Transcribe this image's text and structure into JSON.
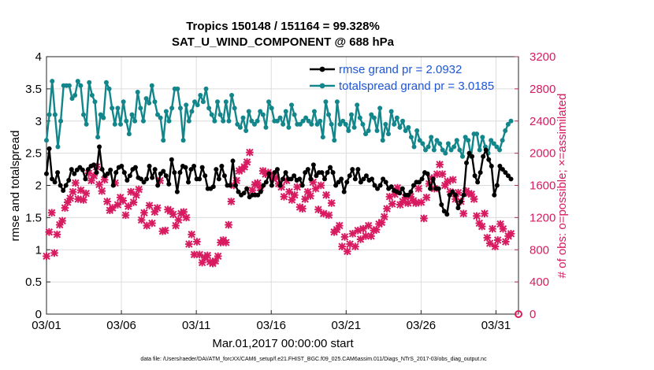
{
  "chart_data": {
    "type": "line",
    "title": "Tropics 150148 / 151164 = 99.328%",
    "subtitle": "SAT_U_WIND_COMPONENT @ 688 hPa",
    "xlabel": "Mar.01,2017 00:00:00 start",
    "ylabel": "rmse and totalspread",
    "y2label": "# of obs: o=possible; ×=assimilated",
    "footer": "data file: /Users/raeder/DAI/ATM_forcXX/CAM6_setup/f.e21.FHIST_BGC.f09_025.CAM6assim.011/Diags_NTrS_2017-03/obs_diag_output.nc",
    "xlim": [
      0,
      31.5
    ],
    "ylim": [
      0,
      4
    ],
    "y2lim": [
      0,
      3200
    ],
    "x_ticks": [
      0,
      5,
      10,
      15,
      20,
      25,
      30
    ],
    "x_tick_labels": [
      "03/01",
      "03/06",
      "03/11",
      "03/16",
      "03/21",
      "03/26",
      "03/31"
    ],
    "y_tick_labels": [
      "0",
      "0.5",
      "1",
      "1.5",
      "2",
      "2.5",
      "3",
      "3.5",
      "4"
    ],
    "y2_tick_labels": [
      "0",
      "400",
      "800",
      "1200",
      "1600",
      "2000",
      "2400",
      "2800",
      "3200"
    ],
    "grid": true,
    "legend_position": "top-right",
    "colors": {
      "rmse": "#000000",
      "totalspread": "#12868a",
      "obs": "#d81b60"
    },
    "series": [
      {
        "name": "rmse grand pr = 2.0932",
        "values": [
          2.18,
          2.57,
          2.1,
          2.05,
          2.2,
          2.0,
          1.92,
          2.0,
          2.08,
          2.25,
          2.18,
          2.24,
          2.28,
          2.24,
          2.1,
          2.25,
          2.3,
          2.32,
          2.2,
          2.6,
          2.25,
          2.15,
          2.18,
          2.24,
          2.0,
          2.2,
          2.28,
          2.3,
          2.2,
          2.08,
          2.15,
          2.25,
          2.28,
          2.12,
          2.1,
          2.05,
          2.1,
          2.3,
          2.12,
          2.25,
          2.0,
          2.18,
          2.22,
          2.15,
          2.02,
          2.4,
          2.2,
          1.9,
          2.2,
          2.3,
          2.28,
          2.05,
          2.25,
          2.3,
          2.1,
          2.1,
          2.28,
          2.15,
          1.95,
          1.95,
          1.98,
          2.25,
          2.1,
          2.3,
          2.15,
          2.0,
          2.0,
          2.38,
          2.0,
          1.9,
          1.85,
          1.88,
          1.95,
          1.82,
          1.85,
          1.85,
          1.85,
          1.9,
          2.0,
          2.05,
          2.18,
          2.0,
          2.2,
          2.25,
          2.0,
          2.1,
          2.2,
          2.1,
          2.1,
          2.15,
          2.08,
          2.1,
          2.0,
          2.2,
          2.25,
          2.1,
          2.32,
          2.15,
          2.2,
          2.2,
          2.1,
          2.2,
          2.28,
          2.2,
          2.0,
          2.05,
          2.1,
          1.9,
          2.05,
          2.15,
          2.25,
          2.1,
          2.25,
          2.05,
          2.1,
          2.15,
          2.08,
          2.1,
          2.0,
          1.95,
          2.0,
          2.1,
          2.05,
          1.95,
          1.98,
          1.92,
          1.9,
          1.88,
          1.95,
          1.85,
          1.85,
          1.9,
          2.0,
          2.05,
          2.05,
          2.1,
          2.2,
          2.18,
          1.95,
          2.1,
          1.95,
          1.95,
          1.7,
          1.6,
          1.55,
          1.85,
          1.9,
          1.85,
          1.65,
          1.75,
          1.85,
          2.35,
          2.5,
          2.45,
          2.15,
          2.05,
          2.2,
          2.45,
          2.55,
          2.4,
          2.3,
          1.85,
          2.0,
          2.3,
          2.25,
          2.2,
          2.15,
          2.1
        ]
      },
      {
        "name": "totalspread grand pr = 3.0185",
        "values": [
          2.7,
          3.1,
          3.62,
          3.1,
          2.6,
          3.0,
          3.55,
          3.55,
          3.55,
          3.35,
          3.4,
          3.62,
          3.55,
          3.1,
          2.95,
          3.6,
          3.4,
          3.3,
          2.75,
          3.1,
          3.05,
          3.6,
          3.5,
          3.2,
          2.95,
          3.2,
          2.95,
          3.3,
          3.0,
          2.8,
          3.1,
          3.0,
          3.45,
          3.2,
          3.0,
          3.35,
          3.28,
          3.55,
          3.3,
          3.1,
          3.05,
          2.7,
          3.15,
          3.0,
          3.2,
          3.5,
          3.5,
          3.2,
          2.7,
          3.25,
          3.0,
          3.15,
          3.3,
          3.25,
          3.4,
          3.3,
          3.5,
          3.2,
          3.1,
          3.0,
          3.3,
          3.1,
          3.0,
          3.3,
          3.0,
          3.4,
          3.2,
          2.95,
          2.9,
          3.05,
          2.85,
          3.15,
          3.0,
          2.95,
          3.0,
          3.15,
          3.1,
          2.9,
          3.3,
          3.2,
          3.0,
          3.0,
          3.05,
          2.95,
          3.15,
          2.9,
          3.25,
          3.1,
          2.95,
          2.95,
          3.0,
          3.05,
          3.0,
          2.95,
          3.15,
          2.95,
          3.0,
          2.75,
          3.3,
          3.1,
          2.95,
          2.7,
          3.3,
          2.95,
          3.0,
          2.95,
          2.85,
          3.1,
          2.9,
          3.25,
          3.05,
          2.95,
          2.8,
          2.85,
          3.1,
          3.05,
          2.85,
          3.2,
          2.7,
          2.95,
          2.8,
          3.15,
          2.95,
          3.05,
          2.9,
          3.0,
          2.85,
          2.9,
          2.75,
          2.6,
          2.85,
          2.7,
          2.65,
          2.55,
          2.6,
          2.75,
          2.55,
          2.7,
          2.65,
          2.55,
          2.5,
          2.65,
          2.55,
          2.6,
          2.7,
          2.55,
          2.45,
          2.75,
          2.7,
          2.45,
          2.8,
          2.8,
          2.55,
          2.75,
          2.6,
          2.5,
          2.7,
          2.65,
          2.6,
          2.55,
          2.7,
          2.85,
          2.95,
          3.0
        ]
      }
    ],
    "obs_assimilated": {
      "name": "assimilated",
      "values": [
        720,
        1020,
        1260,
        760,
        990,
        1110,
        1160,
        1320,
        1390,
        1440,
        1520,
        1630,
        1430,
        1540,
        1420,
        1500,
        1750,
        1660,
        1720,
        1830,
        1610,
        1530,
        1670,
        1400,
        1290,
        1320,
        1630,
        1360,
        1450,
        1410,
        1230,
        1340,
        1520,
        1390,
        1480,
        1550,
        1170,
        1260,
        1100,
        1350,
        1130,
        1270,
        1320,
        1660,
        1030,
        1040,
        1300,
        1280,
        1240,
        1100,
        1170,
        1250,
        1270,
        1200,
        870,
        990,
        740,
        900,
        740,
        640,
        700,
        730,
        650,
        630,
        660,
        720,
        890,
        920,
        890,
        1110,
        1400,
        1600,
        1660,
        1780,
        1800,
        1830,
        1890,
        2010,
        1540,
        1610,
        1630,
        1570,
        1780,
        1740,
        1760,
        1730,
        1680,
        1700,
        1620,
        1580,
        1460,
        1660,
        1520,
        1420,
        1480,
        1580,
        1330,
        1310,
        1430,
        1520,
        1470,
        1640,
        1560,
        1300,
        1600,
        1250,
        1480,
        1230,
        1380,
        1020,
        1050,
        1100,
        840,
        960,
        780,
        870,
        1000,
        840,
        1040,
        930,
        1060,
        970,
        1100,
        970,
        1040,
        1050,
        1120,
        1140,
        1210,
        1310,
        1460,
        1370,
        1490,
        1570,
        1360,
        1400,
        1450,
        1380,
        1460,
        1410,
        1380,
        1560,
        1390,
        1190,
        1450,
        1620,
        1690,
        1560,
        1740,
        1860,
        1740,
        1600,
        1650,
        1520,
        1670,
        1430,
        1510,
        1400,
        1250,
        1530,
        1500,
        1490,
        1430,
        1220,
        1130,
        1090,
        1250,
        950,
        880,
        1060,
        840,
        920,
        1120,
        1060,
        900,
        970,
        1000
      ]
    }
  }
}
